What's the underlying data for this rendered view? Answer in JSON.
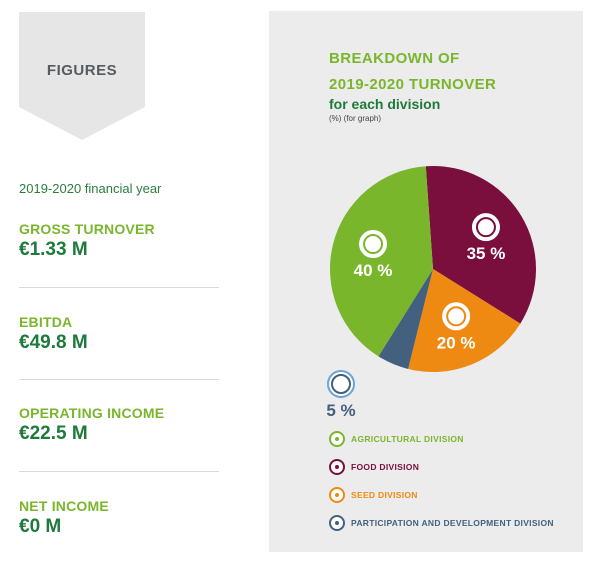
{
  "left": {
    "tab_label": "FIGURES",
    "financial_year": "2019-2020 financial year",
    "kpis": [
      {
        "label": "GROSS TURNOVER",
        "value": "€1.33 M"
      },
      {
        "label": "EBITDA",
        "value": "€49.8 M"
      },
      {
        "label": "OPERATING INCOME",
        "value": "€22.5 M"
      },
      {
        "label": "NET INCOME",
        "value": "€0 M"
      }
    ]
  },
  "chart_data": {
    "type": "pie",
    "title": "BREAKDOWN OF",
    "title_line2": "2019-2020 TURNOVER",
    "subtitle": "for each division",
    "note": "(%) (for graph)",
    "slices": [
      {
        "name": "FOOD DIVISION",
        "value": 35,
        "label": "35 %",
        "color": "#7a0e3d",
        "icon": "food-cloche-icon"
      },
      {
        "name": "SEED DIVISION",
        "value": 20,
        "label": "20 %",
        "color": "#ee8a12",
        "icon": "seed-icon"
      },
      {
        "name": "PARTICIPATION AND DEVELOPMENT DIVISION",
        "value": 5,
        "label": "5 %",
        "color": "#44607f",
        "icon": "checkmark-icon"
      },
      {
        "name": "AGRICULTURAL DIVISION",
        "value": 40,
        "label": "40 %",
        "color": "#7ab62c",
        "icon": "wheat-icon"
      }
    ],
    "legend": [
      {
        "label": "AGRICULTURAL DIVISION",
        "color": "#7ab62c",
        "text_color": "#7ab62c"
      },
      {
        "label": "FOOD DIVISION",
        "color": "#7a0e3d",
        "text_color": "#7a0e3d"
      },
      {
        "label": "SEED DIVISION",
        "color": "#ee8a12",
        "text_color": "#ee8a12"
      },
      {
        "label": "PARTICIPATION AND DEVELOPMENT DIVISION",
        "color": "#44607f",
        "text_color": "#44607f"
      }
    ]
  }
}
